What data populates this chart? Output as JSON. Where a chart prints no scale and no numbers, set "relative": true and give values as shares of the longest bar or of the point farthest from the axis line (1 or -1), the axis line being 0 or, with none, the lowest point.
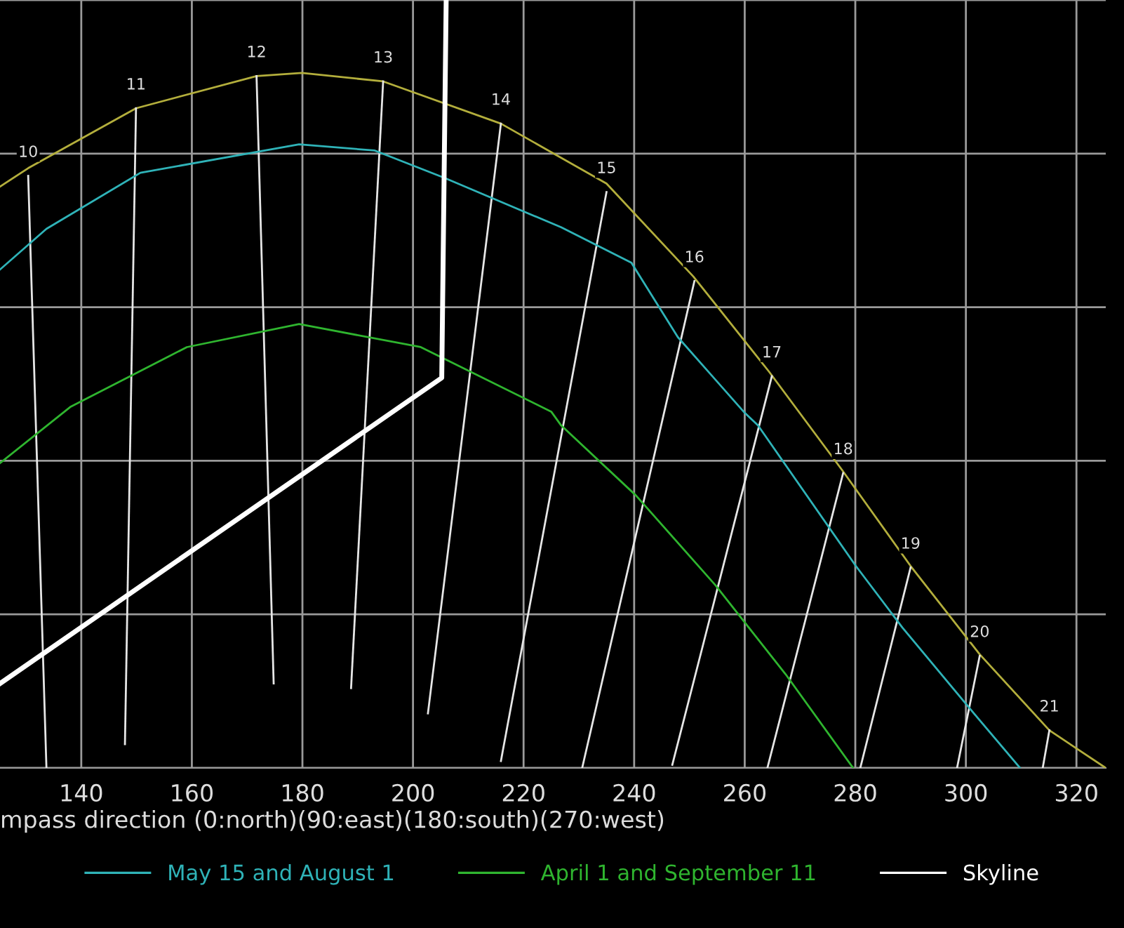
{
  "chart_data": {
    "type": "line",
    "relative": true,
    "xlabel": "mpass direction (0:north)(90:east)(180:south)(270:west)",
    "xlim": [
      125.3,
      325.3
    ],
    "xticks": [
      140,
      160,
      180,
      200,
      220,
      240,
      260,
      280,
      300,
      320
    ],
    "grid": true,
    "legend": "bottom",
    "marker": "none",
    "line_style": "solid",
    "series": [
      {
        "color": "#b3ae3c",
        "x": [
          125.3,
          130.4,
          149.9,
          171.7,
          179.9,
          194.6,
          215.9,
          235.0,
          250.7,
          264.4,
          277.6,
          290.0,
          302.5,
          315.1,
          325.3
        ],
        "values": [
          0.757,
          0.781,
          0.859,
          0.901,
          0.905,
          0.894,
          0.839,
          0.761,
          0.64,
          0.516,
          0.388,
          0.263,
          0.148,
          0.049,
          0
        ]
      },
      {
        "name": "May 15 and August 1",
        "color": "#2fb3b8",
        "x": [
          125.3,
          133.7,
          150.7,
          179.4,
          193.1,
          205.8,
          226.8,
          239.5,
          247.9,
          259.8,
          262.4,
          280.1,
          288.5,
          300.4,
          309.8
        ],
        "values": [
          0.649,
          0.702,
          0.775,
          0.812,
          0.804,
          0.768,
          0.704,
          0.658,
          0.561,
          0.464,
          0.446,
          0.263,
          0.183,
          0.08,
          0
        ]
      },
      {
        "name": "April 1 and September 11",
        "color": "#2fb52f",
        "x": [
          125.3,
          138.0,
          159.1,
          179.4,
          201.4,
          225.0,
          226.8,
          240.3,
          254.7,
          267.4,
          279.6
        ],
        "values": [
          0.397,
          0.47,
          0.548,
          0.578,
          0.548,
          0.464,
          0.446,
          0.355,
          0.238,
          0.122,
          0
        ]
      },
      {
        "name": "Skyline",
        "color": "#ffffff",
        "x": [
          125.3,
          205.2,
          206.0
        ],
        "values": [
          0.11,
          0.508,
          1.0
        ]
      },
      {
        "color": "#e6e6e6",
        "x": [
          130.4,
          133.7
        ],
        "values": [
          0.771,
          0
        ]
      },
      {
        "color": "#e6e6e6",
        "x": [
          149.9,
          147.9
        ],
        "values": [
          0.859,
          0.031
        ]
      },
      {
        "color": "#e6e6e6",
        "x": [
          171.7,
          174.8
        ],
        "values": [
          0.901,
          0.11
        ]
      },
      {
        "color": "#e6e6e6",
        "x": [
          194.6,
          188.8
        ],
        "values": [
          0.894,
          0.104
        ]
      },
      {
        "color": "#e6e6e6",
        "x": [
          215.9,
          202.7
        ],
        "values": [
          0.839,
          0.071
        ]
      },
      {
        "color": "#e6e6e6",
        "x": [
          235.0,
          215.9
        ],
        "values": [
          0.75,
          0.009
        ]
      },
      {
        "color": "#e6e6e6",
        "x": [
          250.9,
          230.6
        ],
        "values": [
          0.634,
          0
        ]
      },
      {
        "color": "#e6e6e6",
        "x": [
          264.9,
          246.9
        ],
        "values": [
          0.51,
          0.004
        ]
      },
      {
        "color": "#e6e6e6",
        "x": [
          277.8,
          264.1
        ],
        "values": [
          0.384,
          0
        ]
      },
      {
        "color": "#e6e6e6",
        "x": [
          290.0,
          280.9
        ],
        "values": [
          0.261,
          0
        ]
      },
      {
        "color": "#e6e6e6",
        "x": [
          302.5,
          298.4
        ],
        "values": [
          0.146,
          0
        ]
      },
      {
        "color": "#e6e6e6",
        "x": [
          315.1,
          313.9
        ],
        "values": [
          0.049,
          0
        ]
      }
    ],
    "annotations": [
      {
        "text": "10",
        "x": 130.4,
        "y": 0.771
      },
      {
        "text": "11",
        "x": 149.9,
        "y": 0.859
      },
      {
        "text": "12",
        "x": 171.7,
        "y": 0.901
      },
      {
        "text": "13",
        "x": 194.6,
        "y": 0.894
      },
      {
        "text": "14",
        "x": 215.9,
        "y": 0.839
      },
      {
        "text": "15",
        "x": 235.0,
        "y": 0.75
      },
      {
        "text": "16",
        "x": 250.9,
        "y": 0.634
      },
      {
        "text": "17",
        "x": 264.9,
        "y": 0.51
      },
      {
        "text": "18",
        "x": 277.8,
        "y": 0.384
      },
      {
        "text": "19",
        "x": 290.0,
        "y": 0.261
      },
      {
        "text": "20",
        "x": 302.5,
        "y": 0.146
      },
      {
        "text": "21",
        "x": 315.1,
        "y": 0.049
      }
    ]
  }
}
